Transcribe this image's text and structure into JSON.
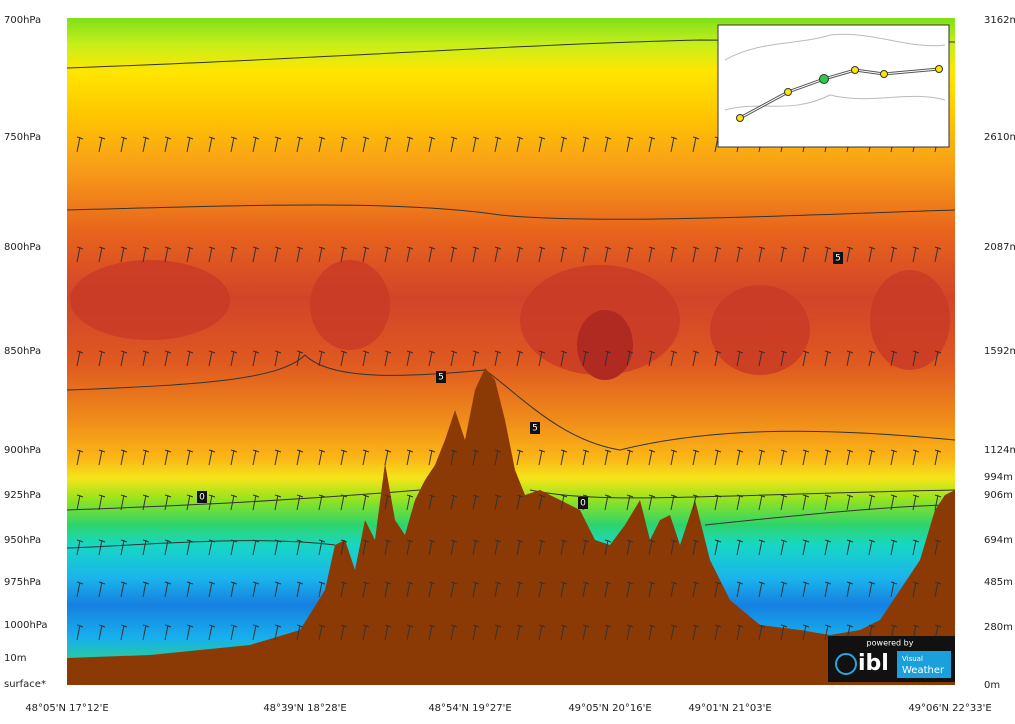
{
  "chart_data": {
    "type": "cross-section",
    "left_labels": [
      "700hPa",
      "750hPa",
      "800hPa",
      "850hPa",
      "900hPa",
      "925hPa",
      "950hPa",
      "975hPa",
      "1000hPa",
      "10m",
      "surface*"
    ],
    "right_labels": [
      "3162m",
      "2610m",
      "2087m",
      "1592m",
      "1124m",
      "994m",
      "906m",
      "694m",
      "485m",
      "280m",
      "0m"
    ],
    "bottom_labels": [
      "48°05'N 17°12'E",
      "48°39'N 18°28'E",
      "48°54'N 19°27'E",
      "49°05'N 20°16'E",
      "49°01'N 21°03'E",
      "49°06'N 22°33'E"
    ],
    "contour_labels": [
      "5",
      "5",
      "5",
      "0",
      "0"
    ],
    "logo": {
      "powered_by": "powered by",
      "brand": "ibl",
      "product_line1": "Visual",
      "product_line2": "Weather"
    }
  }
}
